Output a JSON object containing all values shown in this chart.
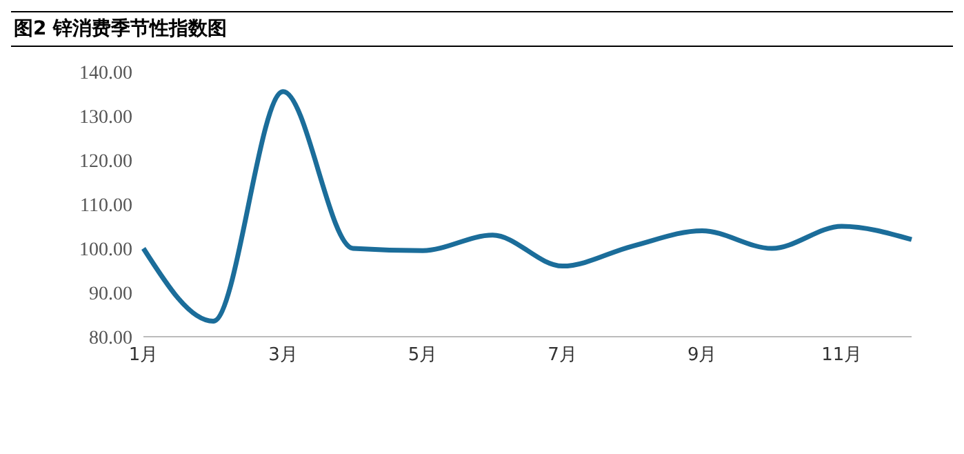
{
  "chart_data": {
    "type": "line",
    "title": "图2 锌消费季节性指数图",
    "categories": [
      "1月",
      null,
      "3月",
      null,
      "5月",
      null,
      "7月",
      null,
      "9月",
      null,
      "11月",
      null
    ],
    "series": [
      {
        "color": "#1b6d9a",
        "values": [
          100,
          83.5,
          135.5,
          100,
          99.5,
          103,
          96,
          100.5,
          104,
          100,
          105,
          102
        ]
      }
    ],
    "ylim": [
      80,
      140
    ],
    "yticks": [
      {
        "value": 80,
        "label": "80.00"
      },
      {
        "value": 90,
        "label": "90.00"
      },
      {
        "value": 100,
        "label": "100.00"
      },
      {
        "value": 110,
        "label": "110.00"
      },
      {
        "value": 120,
        "label": "120.00"
      },
      {
        "value": 130,
        "label": "130.00"
      },
      {
        "value": 140,
        "label": "140.00"
      }
    ],
    "grid": false,
    "legend": false,
    "marker": "none",
    "line_style": "solid"
  }
}
